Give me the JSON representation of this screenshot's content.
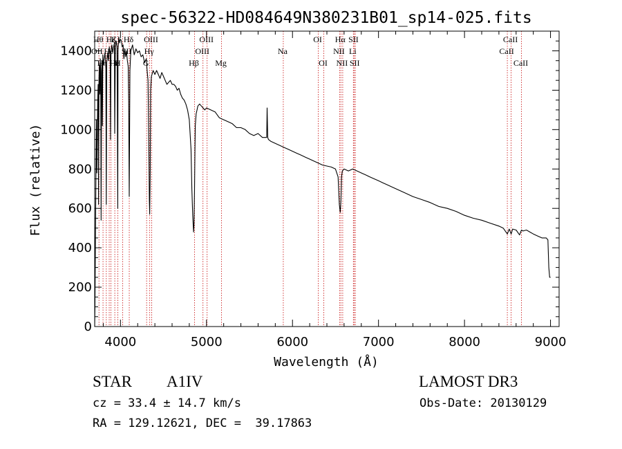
{
  "chart_data": {
    "type": "line",
    "title": "spec-56322-HD084649N380231B01_sp14-025.fits",
    "xlabel": "Wavelength (Å)",
    "ylabel": "Flux (relative)",
    "xlim": [
      3700,
      9100
    ],
    "ylim": [
      0,
      1500
    ],
    "x_ticks": [
      4000,
      5000,
      6000,
      7000,
      8000,
      9000
    ],
    "y_ticks": [
      0,
      200,
      400,
      600,
      800,
      1000,
      1200,
      1400
    ],
    "grid": false,
    "legend": "none",
    "line_color": "#000000",
    "marker_color": "#cc2222",
    "series": [
      {
        "name": "spectrum",
        "x": [
          3700,
          3703,
          3708,
          3715,
          3720,
          3725,
          3730,
          3735,
          3740,
          3745,
          3750,
          3755,
          3760,
          3765,
          3770,
          3775,
          3780,
          3785,
          3790,
          3795,
          3800,
          3810,
          3820,
          3830,
          3835,
          3840,
          3850,
          3860,
          3870,
          3880,
          3885,
          3890,
          3900,
          3910,
          3920,
          3930,
          3933,
          3940,
          3950,
          3960,
          3968,
          3972,
          3980,
          3990,
          4000,
          4010,
          4020,
          4030,
          4040,
          4050,
          4060,
          4070,
          4080,
          4090,
          4095,
          4102,
          4110,
          4120,
          4140,
          4160,
          4180,
          4200,
          4220,
          4240,
          4260,
          4280,
          4300,
          4310,
          4320,
          4330,
          4336,
          4340,
          4346,
          4350,
          4360,
          4380,
          4400,
          4420,
          4440,
          4460,
          4480,
          4500,
          4520,
          4540,
          4560,
          4580,
          4600,
          4620,
          4640,
          4660,
          4680,
          4700,
          4720,
          4740,
          4760,
          4780,
          4800,
          4820,
          4830,
          4840,
          4850,
          4855,
          4861,
          4866,
          4870,
          4880,
          4890,
          4900,
          4920,
          4940,
          4960,
          4980,
          5000,
          5050,
          5100,
          5150,
          5200,
          5250,
          5300,
          5350,
          5400,
          5450,
          5500,
          5550,
          5600,
          5650,
          5700,
          5705,
          5712,
          5720,
          5750,
          5800,
          5850,
          5900,
          5950,
          6000,
          6050,
          6100,
          6150,
          6200,
          6250,
          6300,
          6350,
          6400,
          6450,
          6500,
          6530,
          6545,
          6555,
          6563,
          6570,
          6580,
          6600,
          6650,
          6700,
          6750,
          6800,
          6850,
          6900,
          6950,
          7000,
          7050,
          7100,
          7150,
          7200,
          7300,
          7400,
          7500,
          7600,
          7700,
          7800,
          7900,
          8000,
          8100,
          8200,
          8300,
          8400,
          8450,
          8498,
          8520,
          8542,
          8560,
          8600,
          8640,
          8662,
          8680,
          8720,
          8760,
          8800,
          8850,
          8900,
          8950,
          8970,
          8980,
          8990,
          9000
        ],
        "y": [
          0,
          100,
          400,
          800,
          1050,
          780,
          950,
          1150,
          1230,
          620,
          1260,
          1330,
          1180,
          1360,
          1290,
          540,
          1300,
          1350,
          1020,
          1380,
          1330,
          1360,
          1390,
          1310,
          620,
          1340,
          1390,
          1350,
          1420,
          1380,
          950,
          1400,
          1430,
          1390,
          1420,
          1440,
          980,
          1410,
          1450,
          1420,
          600,
          1400,
          1470,
          1440,
          1460,
          1450,
          1420,
          1430,
          1360,
          1410,
          1370,
          1400,
          1350,
          1320,
          1150,
          660,
          1300,
          1400,
          1430,
          1380,
          1410,
          1390,
          1400,
          1370,
          1380,
          1340,
          1360,
          1300,
          1250,
          900,
          640,
          570,
          800,
          1200,
          1270,
          1300,
          1280,
          1300,
          1280,
          1260,
          1290,
          1270,
          1250,
          1230,
          1240,
          1250,
          1230,
          1230,
          1220,
          1200,
          1210,
          1180,
          1160,
          1150,
          1130,
          1100,
          1050,
          900,
          700,
          560,
          480,
          520,
          700,
          900,
          1020,
          1080,
          1100,
          1120,
          1130,
          1120,
          1110,
          1100,
          1110,
          1100,
          1090,
          1060,
          1050,
          1040,
          1030,
          1010,
          1010,
          1000,
          980,
          970,
          980,
          960,
          960,
          1110,
          960,
          950,
          940,
          930,
          920,
          910,
          900,
          890,
          880,
          870,
          860,
          850,
          840,
          830,
          820,
          815,
          810,
          800,
          760,
          620,
          580,
          640,
          760,
          790,
          800,
          790,
          800,
          790,
          780,
          770,
          760,
          750,
          740,
          730,
          720,
          710,
          700,
          680,
          660,
          645,
          630,
          610,
          600,
          585,
          565,
          550,
          540,
          525,
          510,
          500,
          470,
          495,
          470,
          495,
          490,
          465,
          490,
          485,
          490,
          480,
          470,
          460,
          450,
          450,
          440,
          300,
          250,
          250
        ]
      }
    ],
    "lines": [
      {
        "wl": 3750,
        "label": "Hθ",
        "row": 0
      },
      {
        "wl": 3797,
        "label": "Hη",
        "row": 2
      },
      {
        "wl": 3835,
        "label": "",
        "row": 1
      },
      {
        "wl": 3869,
        "label": "",
        "row": 1
      },
      {
        "wl": 3889,
        "label": "",
        "row": 2
      },
      {
        "wl": 3934,
        "label": "K",
        "row": 0
      },
      {
        "wl": 3969,
        "label": "",
        "row": 2
      },
      {
        "wl": 4026,
        "label": "",
        "row": 1
      },
      {
        "wl": 4102,
        "label": "Hδ",
        "row": 0
      },
      {
        "wl": 4304,
        "label": "G",
        "row": 2
      },
      {
        "wl": 4340,
        "label": "Hγ",
        "row": 1
      },
      {
        "wl": 4363,
        "label": "OIII",
        "row": 0
      },
      {
        "wl": 4861,
        "label": "Hβ",
        "row": 2
      },
      {
        "wl": 4959,
        "label": "OIII",
        "row": 1
      },
      {
        "wl": 5007,
        "label": "OIII",
        "row": 0
      },
      {
        "wl": 5175,
        "label": "Mg",
        "row": 2
      },
      {
        "wl": 5893,
        "label": "Na",
        "row": 1
      },
      {
        "wl": 6300,
        "label": "OI",
        "row": 0
      },
      {
        "wl": 6364,
        "label": "OI",
        "row": 2
      },
      {
        "wl": 6548,
        "label": "NII",
        "row": 1
      },
      {
        "wl": 6563,
        "label": "Hα",
        "row": 0
      },
      {
        "wl": 6584,
        "label": "NII",
        "row": 2
      },
      {
        "wl": 6708,
        "label": "Li",
        "row": 1
      },
      {
        "wl": 6717,
        "label": "SII",
        "row": 0
      },
      {
        "wl": 6731,
        "label": "SII",
        "row": 2
      },
      {
        "wl": 8498,
        "label": "CaII",
        "row": 1
      },
      {
        "wl": 8542,
        "label": "CaII",
        "row": 0
      },
      {
        "wl": 8662,
        "label": "CaII",
        "row": 2
      }
    ],
    "extra_labels": [
      {
        "text": "OII",
        "row": 1,
        "near": 3727
      },
      {
        "text": "HeI",
        "row": 1,
        "near": 3880
      },
      {
        "text": "SII",
        "row": 1,
        "near": 4070
      },
      {
        "text": "Hε",
        "row": 2,
        "near": 3930
      },
      {
        "text": "H",
        "row": 2,
        "near": 3968
      },
      {
        "text": "Hζ",
        "row": 0,
        "near": 3889
      }
    ]
  },
  "info": {
    "object_class": "STAR",
    "subclass": "A1IV",
    "survey": "LAMOST DR3",
    "cz": "cz = 33.4 ± 14.7 km/s",
    "obs_date": "Obs-Date: 20130129",
    "coords": "RA = 129.12621, DEC =  39.17863"
  }
}
